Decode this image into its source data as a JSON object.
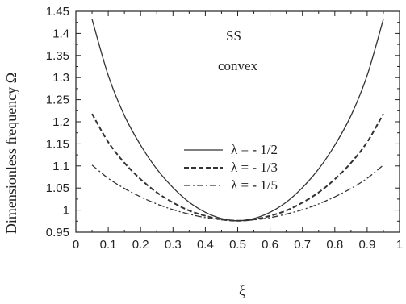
{
  "chart_data": {
    "type": "line",
    "xlabel": "ξ",
    "ylabel": "Dimensionless frequency Ω",
    "xlim": [
      0,
      1
    ],
    "ylim": [
      0.95,
      1.45
    ],
    "xticks": [
      "0",
      "0.1",
      "0.2",
      "0.3",
      "0.4",
      "0.5",
      "0.6",
      "0.7",
      "0.8",
      "0.9",
      "1"
    ],
    "yticks": [
      "0.95",
      "1",
      "1.05",
      "1.1",
      "1.15",
      "1.2",
      "1.25",
      "1.3",
      "1.35",
      "1.4",
      "1.45"
    ],
    "grid": false,
    "legend_position": "center-left",
    "annotations": [
      "SS",
      "convex"
    ],
    "series": [
      {
        "name": "λ = - 1/2",
        "style": "solid",
        "x": [
          0.05,
          0.1,
          0.15,
          0.2,
          0.25,
          0.3,
          0.35,
          0.4,
          0.45,
          0.5,
          0.55,
          0.6,
          0.65,
          0.7,
          0.75,
          0.8,
          0.85,
          0.9,
          0.95
        ],
        "y": [
          1.432,
          1.305,
          1.214,
          1.147,
          1.093,
          1.051,
          1.018,
          0.995,
          0.981,
          0.976,
          0.981,
          0.995,
          1.018,
          1.051,
          1.093,
          1.147,
          1.214,
          1.305,
          1.432
        ]
      },
      {
        "name": "λ = - 1/3",
        "style": "dashed",
        "x": [
          0.05,
          0.1,
          0.15,
          0.2,
          0.25,
          0.3,
          0.35,
          0.4,
          0.45,
          0.5,
          0.55,
          0.6,
          0.65,
          0.7,
          0.75,
          0.8,
          0.85,
          0.9,
          0.95
        ],
        "y": [
          1.218,
          1.154,
          1.107,
          1.07,
          1.04,
          1.017,
          0.999,
          0.987,
          0.979,
          0.976,
          0.979,
          0.987,
          0.999,
          1.017,
          1.04,
          1.07,
          1.107,
          1.154,
          1.218
        ]
      },
      {
        "name": "λ = - 1/5",
        "style": "dashdot",
        "x": [
          0.05,
          0.1,
          0.15,
          0.2,
          0.25,
          0.3,
          0.35,
          0.4,
          0.45,
          0.5,
          0.55,
          0.6,
          0.65,
          0.7,
          0.75,
          0.8,
          0.85,
          0.9,
          0.95
        ],
        "y": [
          1.102,
          1.072,
          1.049,
          1.03,
          1.014,
          1.001,
          0.991,
          0.983,
          0.978,
          0.976,
          0.978,
          0.983,
          0.991,
          1.001,
          1.014,
          1.03,
          1.049,
          1.072,
          1.102
        ]
      }
    ]
  }
}
